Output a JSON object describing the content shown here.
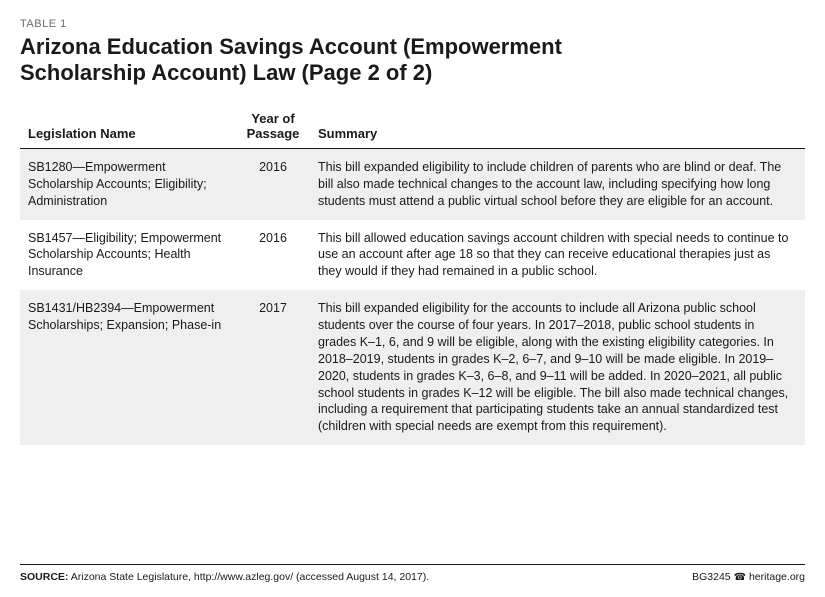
{
  "table_label": "TABLE 1",
  "title": "Arizona Education Savings Account (Empowerment Scholarship Account) Law (Page 2 of 2)",
  "columns": {
    "name": "Legislation Name",
    "year": "Year of Passage",
    "summary": "Summary"
  },
  "rows": [
    {
      "name": "SB1280—Empowerment Scholarship Accounts; Eligibility; Administration",
      "year": "2016",
      "summary": "This bill expanded eligibility to include children of parents who are blind or deaf. The bill also made technical changes to the account law, including specifying how long students must attend a public virtual school before they are eligible for an account."
    },
    {
      "name": "SB1457—Eligibility; Empowerment Scholarship Accounts; Health Insurance",
      "year": "2016",
      "summary": "This bill allowed education savings account children with special needs to continue to use an account after age 18 so that they can receive educational therapies just as they would if they had remained in a public school."
    },
    {
      "name": "SB1431/HB2394—Empowerment Scholarships; Expansion; Phase-in",
      "year": "2017",
      "summary": "This bill expanded eligibility for the accounts to include all Arizona public school students over the course of four years. In 2017–2018, public school students in grades K–1, 6, and 9 will be eligible, along with the existing eligibility categories. In 2018–2019, students in grades K–2, 6–7, and 9–10 will be made eligible. In 2019–2020, students in grades K–3, 6–8, and 9–11 will be added. In 2020–2021, all public school students in grades K–12 will be eligible. The bill also made technical changes, including a requirement that participating students take an annual standardized test (children with special needs are exempt from this requirement)."
    }
  ],
  "footer": {
    "source_label": "SOURCE:",
    "source_text": " Arizona State Legislature, http://www.azleg.gov/ (accessed August 14, 2017).",
    "doc_id": "BG3245",
    "site": "heritage.org"
  },
  "styling": {
    "body_bg": "#ffffff",
    "text_color": "#1a1a1a",
    "label_color": "#6b6b6b",
    "shade_bg": "#efefef",
    "rule_color": "#1a1a1a",
    "title_fontsize": 22,
    "body_fontsize": 12.5,
    "header_fontsize": 13,
    "footer_fontsize": 10.5,
    "col_widths": {
      "name": 218,
      "year": 72
    }
  }
}
